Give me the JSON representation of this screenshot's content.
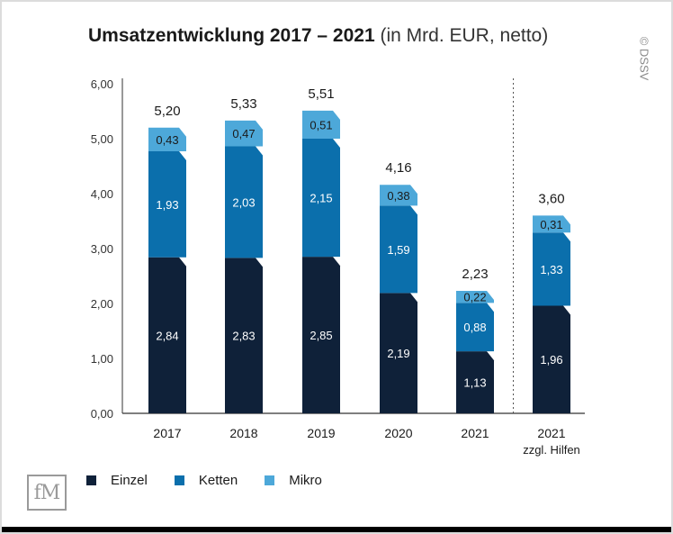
{
  "title": {
    "bold": "Umsatzentwicklung 2017 – 2021",
    "normal": "(in Mrd. EUR, netto)"
  },
  "credit": "© DSSV",
  "logo_text": "fM",
  "colors": {
    "einzel": "#0f2139",
    "ketten": "#0b6fac",
    "mikro": "#4da8d9",
    "axis": "#333333",
    "divider": "#555555"
  },
  "chart_data": {
    "type": "bar",
    "stacked": true,
    "categories": [
      "2017",
      "2018",
      "2019",
      "2020",
      "2021",
      "2021\nzzgl. Hilfen"
    ],
    "category_lines": [
      [
        "2017"
      ],
      [
        "2018"
      ],
      [
        "2019"
      ],
      [
        "2020"
      ],
      [
        "2021"
      ],
      [
        "2021",
        "zzgl. Hilfen"
      ]
    ],
    "series": [
      {
        "name": "Einzel",
        "values": [
          2.84,
          2.83,
          2.85,
          2.19,
          1.13,
          1.96
        ],
        "labels": [
          "2,84",
          "2,83",
          "2,85",
          "2,19",
          "1,13",
          "1,96"
        ]
      },
      {
        "name": "Ketten",
        "values": [
          1.93,
          2.03,
          2.15,
          1.59,
          0.88,
          1.33
        ],
        "labels": [
          "1,93",
          "2,03",
          "2,15",
          "1,59",
          "0,88",
          "1,33"
        ]
      },
      {
        "name": "Mikro",
        "values": [
          0.43,
          0.47,
          0.51,
          0.38,
          0.22,
          0.31
        ],
        "labels": [
          "0,43",
          "0,47",
          "0,51",
          "0,38",
          "0,22",
          "0,31"
        ]
      }
    ],
    "totals": [
      5.2,
      5.33,
      5.51,
      4.16,
      2.23,
      3.6
    ],
    "total_labels": [
      "5,20",
      "5,33",
      "5,51",
      "4,16",
      "2,23",
      "3,60"
    ],
    "ylim": [
      0,
      6
    ],
    "yticks": [
      "0,00",
      "1,00",
      "2,00",
      "3,00",
      "4,00",
      "5,00",
      "6,00"
    ],
    "xlabel": "",
    "ylabel": "",
    "grid": false,
    "divider_before_category": 5,
    "legend_position": "bottom-left"
  }
}
